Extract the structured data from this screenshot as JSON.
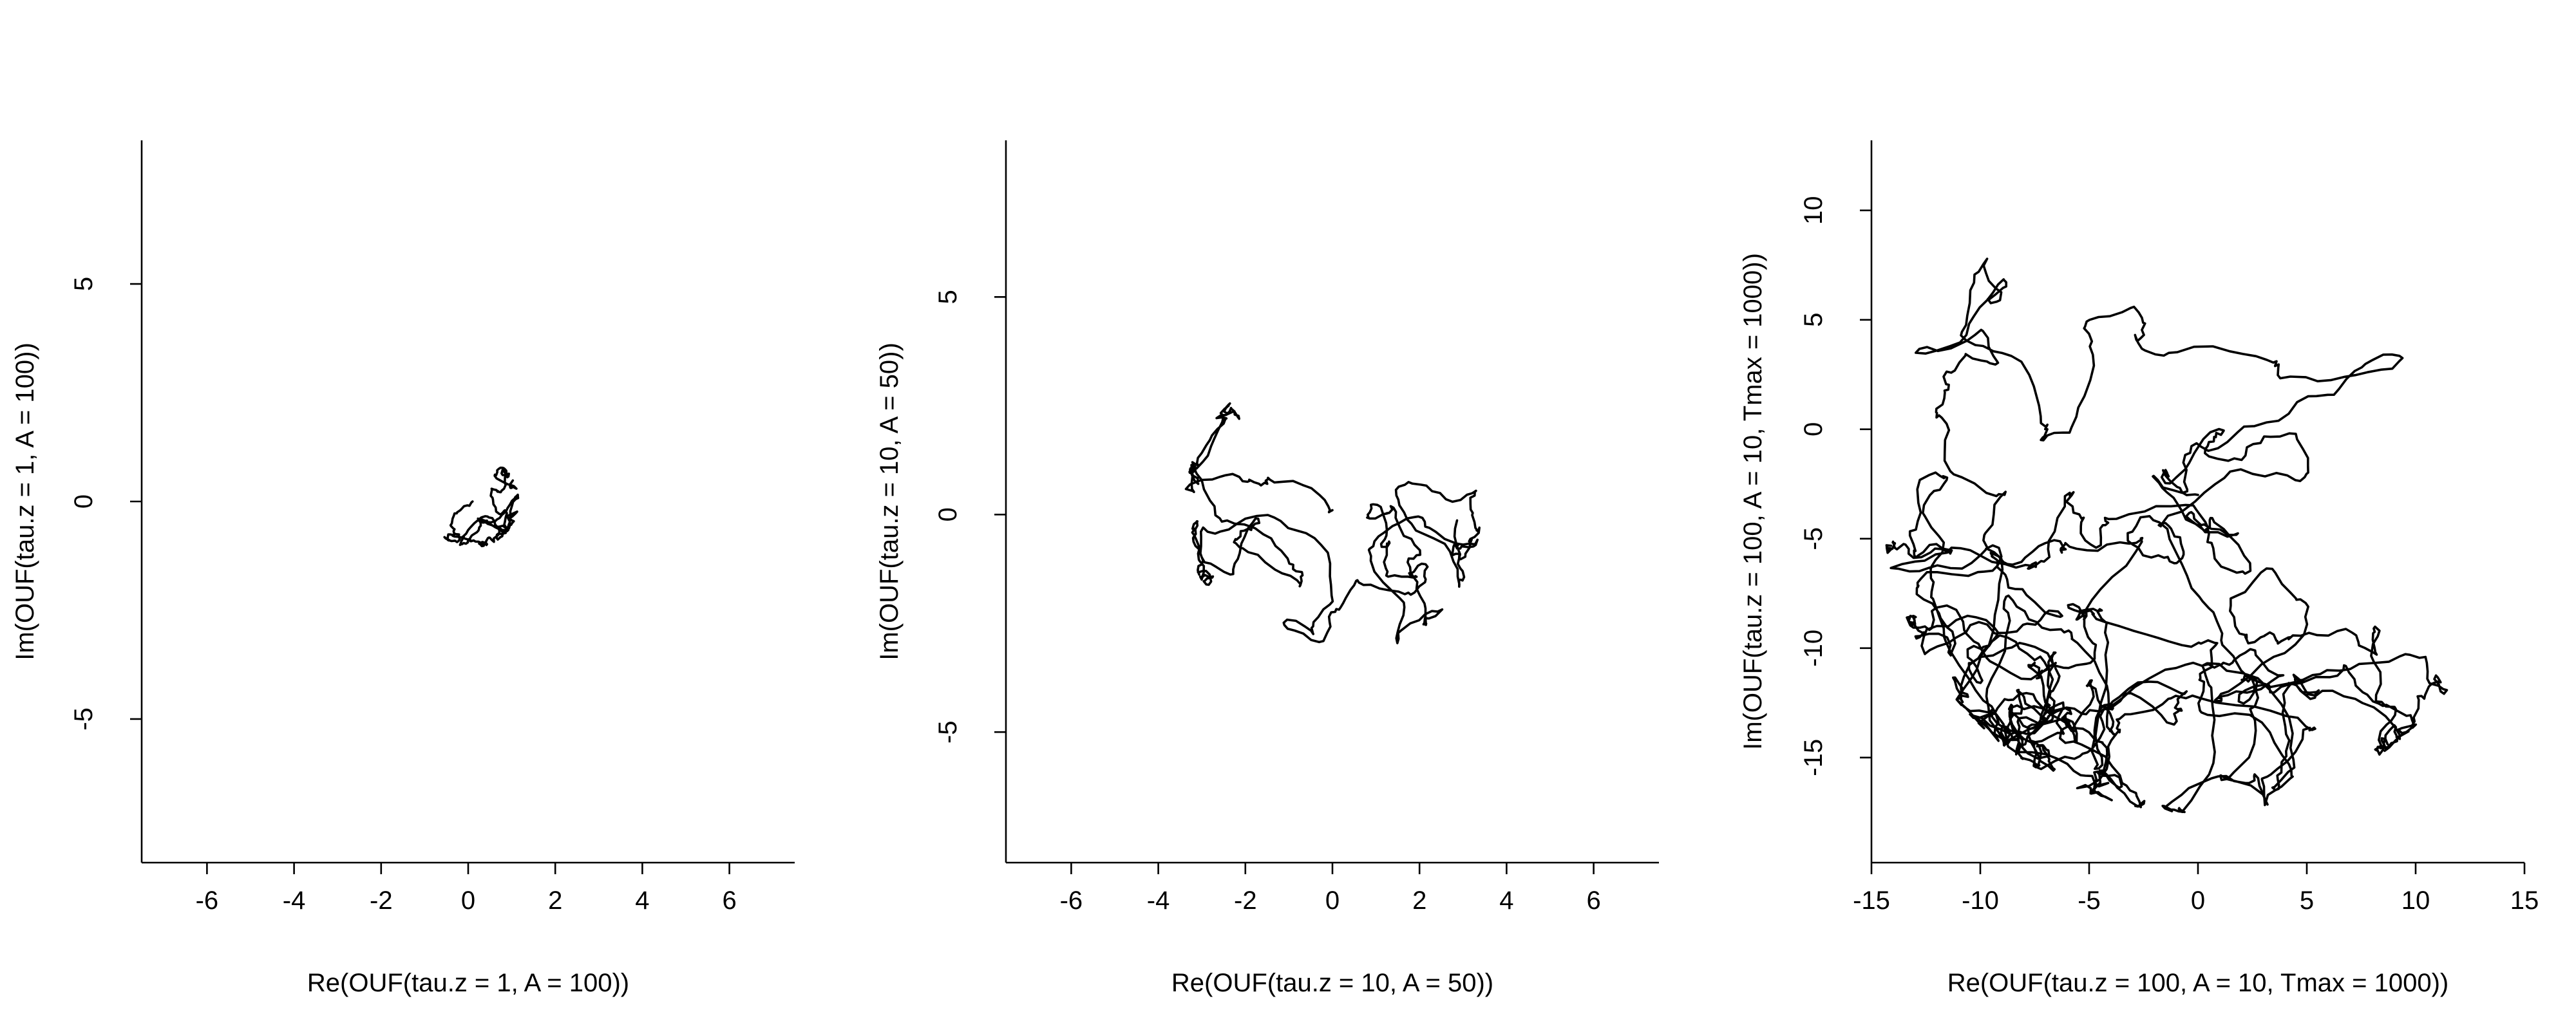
{
  "chart_data": [
    {
      "type": "line",
      "title": "",
      "xlabel": "Re(OUF(tau.z = 1, A = 100))",
      "ylabel": "Im(OUF(tau.z = 1, A = 100))",
      "xlim": [
        -7.5,
        7.5
      ],
      "ylim": [
        -8.3,
        8.3
      ],
      "xticks": [
        -6,
        -4,
        -2,
        0,
        2,
        4,
        6
      ],
      "xtick_labels": [
        "-6",
        "-4",
        "-2",
        "0",
        "2",
        "4",
        "6"
      ],
      "yticks": [
        -5,
        0,
        5
      ],
      "ytick_labels": [
        "-5",
        "0",
        "5"
      ],
      "grid": false,
      "trajectory": {
        "center": [
          0.1,
          0
        ],
        "radius": 1.05,
        "steps": 320,
        "seed": 11,
        "step_size": 0.1
      }
    },
    {
      "type": "line",
      "title": "",
      "xlabel": "Re(OUF(tau.z = 10, A = 50))",
      "ylabel": "Im(OUF(tau.z = 10, A = 50))",
      "xlim": [
        -7.5,
        7.5
      ],
      "ylim": [
        -8.0,
        8.6
      ],
      "xticks": [
        -6,
        -4,
        -2,
        0,
        2,
        4,
        6
      ],
      "xtick_labels": [
        "-6",
        "-4",
        "-2",
        "0",
        "2",
        "4",
        "6"
      ],
      "yticks": [
        -5,
        0,
        5
      ],
      "ytick_labels": [
        "-5",
        "0",
        "5"
      ],
      "grid": false,
      "trajectory": {
        "center": [
          0,
          0.1
        ],
        "radius": 3.4,
        "steps": 520,
        "seed": 23,
        "step_size": 0.2
      }
    },
    {
      "type": "line",
      "title": "",
      "xlabel": "Re(OUF(tau.z = 100, A = 10, Tmax = 1000))",
      "ylabel": "Im(OUF(tau.z = 100, A = 10, Tmax = 1000))",
      "xlim": [
        -15,
        15
      ],
      "ylim": [
        -19.8,
        13.2
      ],
      "xticks": [
        -15,
        -10,
        -5,
        0,
        5,
        10,
        15
      ],
      "xtick_labels": [
        "-15",
        "-10",
        "-5",
        "0",
        "5",
        "10",
        "15"
      ],
      "yticks": [
        -15,
        -10,
        -5,
        0,
        5,
        10
      ],
      "ytick_labels": [
        "-15",
        "-10",
        "-5",
        "0",
        "5",
        "10"
      ],
      "grid": false,
      "trajectory": {
        "center": [
          0,
          -3
        ],
        "radius": 14.5,
        "steps": 1900,
        "seed": 47,
        "step_size": 0.55
      }
    }
  ]
}
